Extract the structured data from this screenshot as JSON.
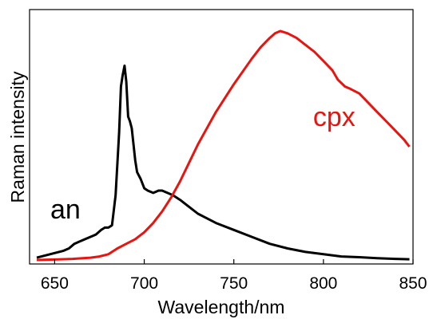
{
  "chart_data": {
    "type": "line",
    "xlabel": "Wavelength/nm",
    "ylabel": "Raman intensity",
    "xlim": [
      636,
      850
    ],
    "ylim": [
      0,
      1
    ],
    "xticks": [
      650,
      700,
      750,
      800,
      850
    ],
    "y_tick_labels_shown": false,
    "grid": false,
    "series": [
      {
        "name": "an",
        "color": "#000000",
        "x": [
          640,
          645,
          650,
          655,
          658,
          661,
          664,
          667,
          670,
          673,
          676,
          678,
          680,
          682,
          684,
          686,
          687,
          688,
          689,
          690,
          691,
          692,
          693,
          694,
          695,
          696,
          698,
          700,
          702,
          705,
          708,
          710,
          713,
          716,
          720,
          725,
          730,
          740,
          750,
          760,
          770,
          780,
          790,
          800,
          810,
          820,
          830,
          840,
          848
        ],
        "y": [
          0.01,
          0.02,
          0.03,
          0.04,
          0.05,
          0.07,
          0.08,
          0.09,
          0.1,
          0.11,
          0.13,
          0.14,
          0.14,
          0.15,
          0.28,
          0.55,
          0.75,
          0.8,
          0.84,
          0.77,
          0.62,
          0.6,
          0.57,
          0.5,
          0.43,
          0.38,
          0.35,
          0.31,
          0.3,
          0.29,
          0.3,
          0.3,
          0.29,
          0.28,
          0.26,
          0.23,
          0.2,
          0.16,
          0.13,
          0.1,
          0.07,
          0.05,
          0.035,
          0.025,
          0.015,
          0.012,
          0.008,
          0.005,
          0.003
        ]
      },
      {
        "name": "cpx",
        "color": "#e8140f",
        "x": [
          640,
          650,
          660,
          670,
          675,
          680,
          685,
          690,
          695,
          700,
          705,
          710,
          715,
          720,
          725,
          730,
          740,
          750,
          760,
          765,
          770,
          773,
          776,
          780,
          785,
          790,
          795,
          800,
          805,
          808,
          812,
          815,
          820,
          825,
          830,
          835,
          840,
          845,
          848
        ],
        "y": [
          0.0,
          0.002,
          0.005,
          0.01,
          0.015,
          0.025,
          0.05,
          0.07,
          0.09,
          0.12,
          0.16,
          0.21,
          0.27,
          0.34,
          0.42,
          0.5,
          0.64,
          0.76,
          0.87,
          0.92,
          0.96,
          0.98,
          0.99,
          0.98,
          0.96,
          0.93,
          0.9,
          0.86,
          0.82,
          0.78,
          0.75,
          0.74,
          0.72,
          0.68,
          0.64,
          0.6,
          0.56,
          0.52,
          0.49
        ]
      }
    ],
    "annotations": [
      {
        "text": "an",
        "x": 656,
        "y": 0.22,
        "color": "#000000"
      },
      {
        "text": "cpx",
        "x": 806,
        "y": 0.62,
        "color": "#e8140f"
      }
    ]
  }
}
